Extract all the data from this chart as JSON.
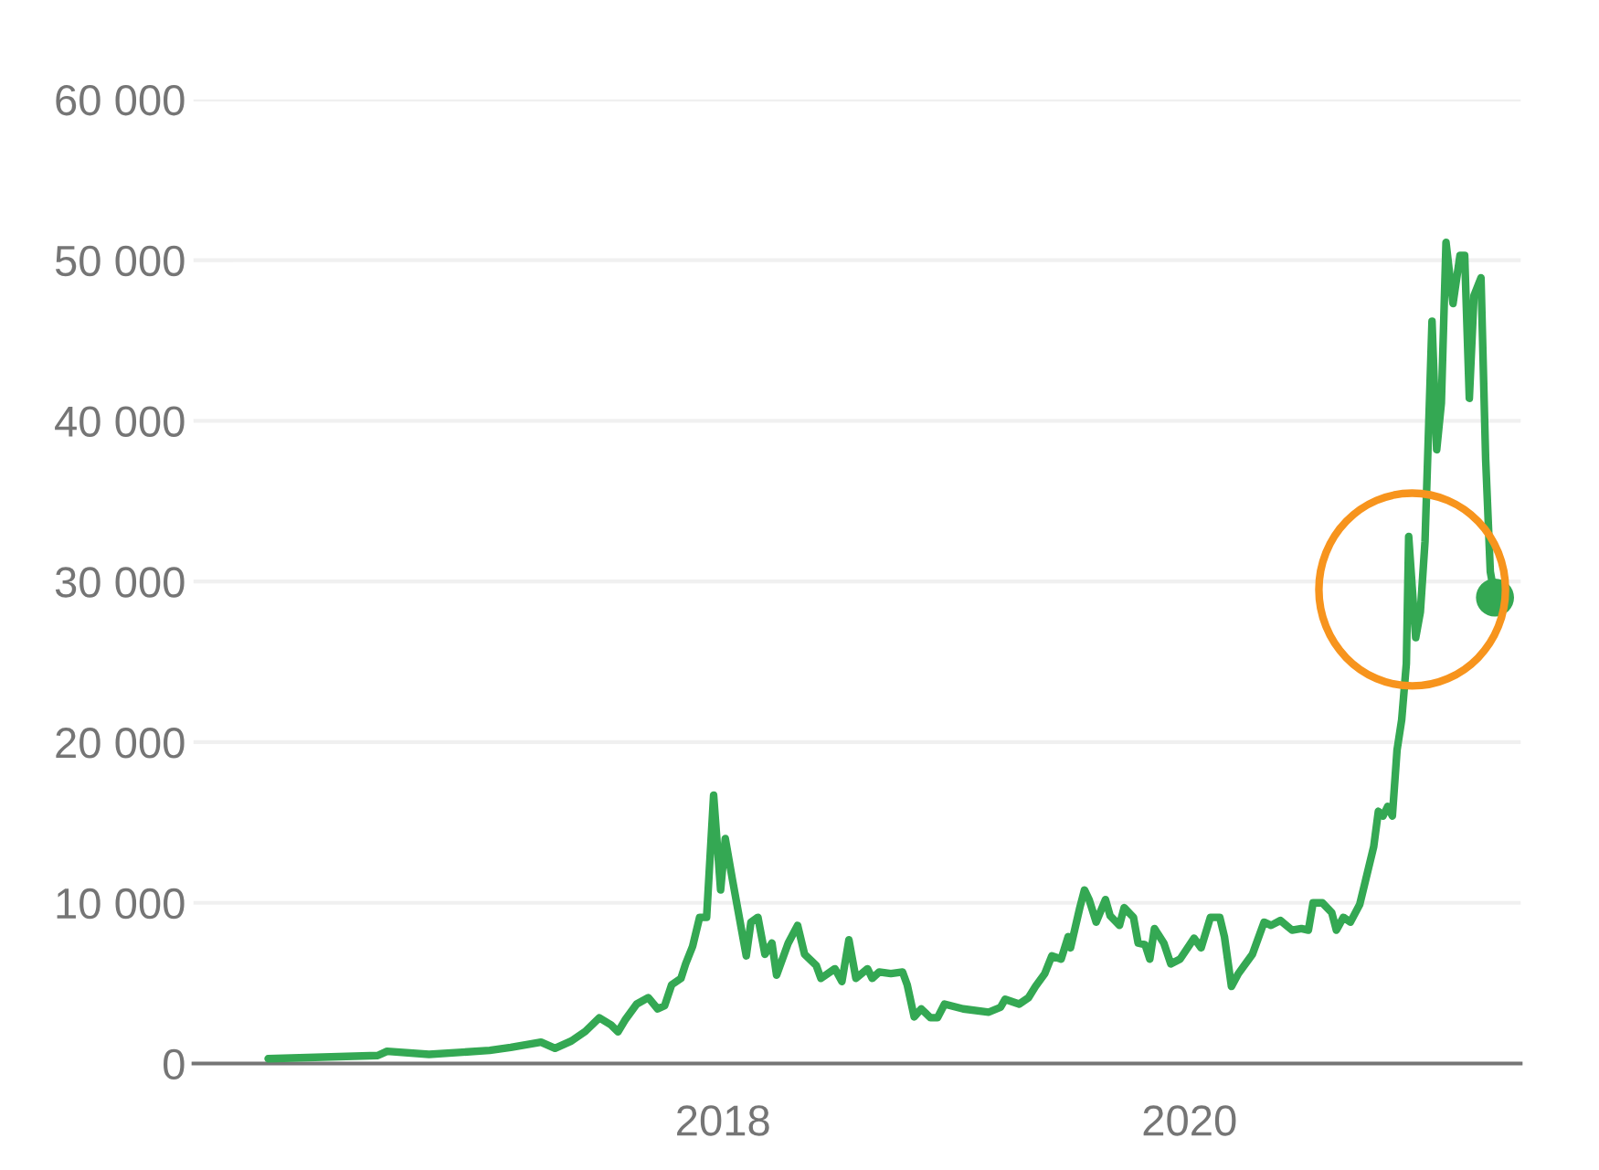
{
  "chart_data": {
    "type": "line",
    "xlim": [
      2015.73,
      2021.42
    ],
    "xticks": [
      2018,
      2020
    ],
    "ylim": [
      0,
      60000
    ],
    "yticks": [
      {
        "value": 0,
        "label": "0"
      },
      {
        "value": 10000,
        "label": "10 000"
      },
      {
        "value": 20000,
        "label": "20 000"
      },
      {
        "value": 30000,
        "label": "30 000"
      },
      {
        "value": 40000,
        "label": "40 000"
      },
      {
        "value": 50000,
        "label": "50 000"
      },
      {
        "value": 60000,
        "label": "60 000"
      }
    ],
    "grid": "y",
    "legend": false,
    "series": [
      {
        "color": "#34a853",
        "marker": "none",
        "line_style": "solid",
        "x": [
          2016.05,
          2016.52,
          2016.56,
          2016.74,
          2017.0,
          2017.09,
          2017.22,
          2017.28,
          2017.35,
          2017.41,
          2017.47,
          2017.52,
          2017.55,
          2017.58,
          2017.63,
          2017.68,
          2017.72,
          2017.75,
          2017.78,
          2017.82,
          2017.84,
          2017.87,
          2017.9,
          2017.93,
          2017.96,
          2017.99,
          2018.01,
          2018.04,
          2018.07,
          2018.1,
          2018.12,
          2018.15,
          2018.18,
          2018.21,
          2018.23,
          2018.28,
          2018.32,
          2018.35,
          2018.4,
          2018.42,
          2018.48,
          2018.51,
          2018.54,
          2018.57,
          2018.62,
          2018.64,
          2018.67,
          2018.72,
          2018.77,
          2018.79,
          2018.82,
          2018.85,
          2018.89,
          2018.92,
          2018.95,
          2019.03,
          2019.14,
          2019.19,
          2019.21,
          2019.27,
          2019.31,
          2019.34,
          2019.38,
          2019.41,
          2019.45,
          2019.48,
          2019.49,
          2019.53,
          2019.55,
          2019.57,
          2019.6,
          2019.64,
          2019.66,
          2019.7,
          2019.72,
          2019.76,
          2019.78,
          2019.81,
          2019.83,
          2019.85,
          2019.89,
          2019.92,
          2019.96,
          2020.02,
          2020.05,
          2020.09,
          2020.13,
          2020.15,
          2020.18,
          2020.21,
          2020.24,
          2020.27,
          2020.32,
          2020.35,
          2020.39,
          2020.44,
          2020.48,
          2020.51,
          2020.53,
          2020.57,
          2020.61,
          2020.63,
          2020.66,
          2020.69,
          2020.73,
          2020.75,
          2020.79,
          2020.81,
          2020.83,
          2020.85,
          2020.87,
          2020.89,
          2020.91,
          2020.93,
          2020.94,
          2020.97,
          2020.99,
          2021.01,
          2021.04,
          2021.06,
          2021.08,
          2021.1,
          2021.13,
          2021.16,
          2021.18,
          2021.2,
          2021.22,
          2021.25,
          2021.27,
          2021.29,
          2021.31
        ],
        "values": [
          300,
          500,
          760,
          570,
          820,
          1000,
          1330,
          950,
          1400,
          2000,
          2850,
          2400,
          1970,
          2700,
          3700,
          4100,
          3400,
          3600,
          4900,
          5300,
          6200,
          7300,
          9100,
          9100,
          16700,
          10800,
          14000,
          11500,
          9100,
          6700,
          8800,
          9100,
          6800,
          7500,
          5500,
          7500,
          8600,
          6800,
          6100,
          5300,
          5900,
          5100,
          7700,
          5300,
          5900,
          5300,
          5700,
          5600,
          5700,
          4900,
          2900,
          3400,
          2850,
          2850,
          3700,
          3400,
          3200,
          3500,
          4000,
          3700,
          4100,
          4800,
          5600,
          6700,
          6500,
          7900,
          7200,
          9700,
          10800,
          10200,
          8800,
          10200,
          9200,
          8600,
          9700,
          9100,
          7500,
          7400,
          6500,
          8400,
          7500,
          6200,
          6500,
          7800,
          7200,
          9100,
          9100,
          7900,
          4800,
          5600,
          6200,
          6800,
          8800,
          8600,
          8900,
          8300,
          8400,
          8300,
          10000,
          10000,
          9400,
          8300,
          9100,
          8800,
          9900,
          11100,
          13500,
          15700,
          15400,
          16000,
          15400,
          19500,
          21400,
          24900,
          32800,
          26500,
          28100,
          32500,
          46200,
          38200,
          41100,
          51100,
          47300,
          50300,
          50300,
          41400,
          47800,
          48900,
          37600,
          30600,
          29000
        ]
      },
      {
        "type": "scatter",
        "color": "#34a853",
        "marker": "circle",
        "x": [
          2021.31
        ],
        "values": [
          29000
        ]
      }
    ]
  }
}
